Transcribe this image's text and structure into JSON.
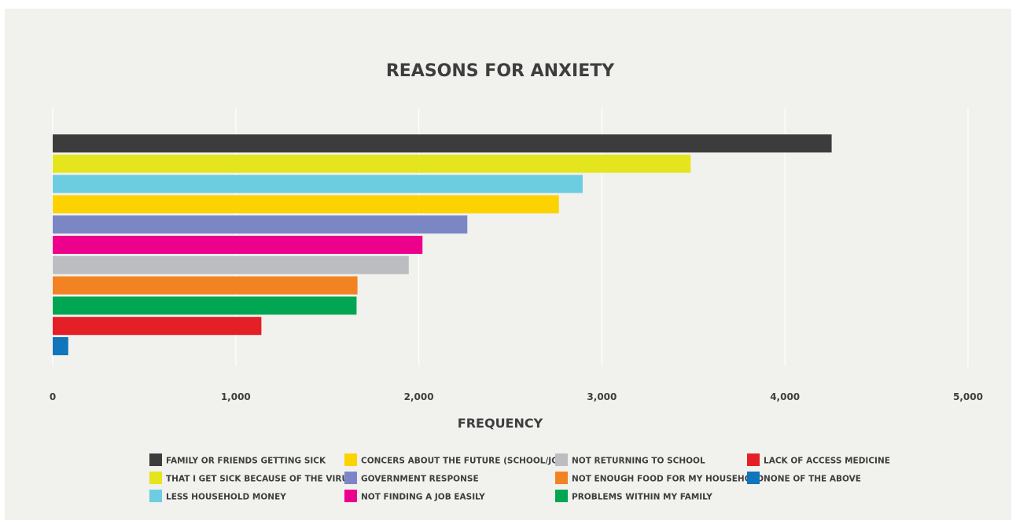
{
  "chart_data": {
    "type": "bar",
    "orientation": "horizontal",
    "title": "REASONS FOR ANXIETY",
    "xlabel": "FREQUENCY",
    "ylabel": "",
    "xlim": [
      0,
      5000
    ],
    "xticks": [
      {
        "value": 0,
        "label": "0"
      },
      {
        "value": 1000,
        "label": "1,000"
      },
      {
        "value": 2000,
        "label": "2,000"
      },
      {
        "value": 3000,
        "label": "3,000"
      },
      {
        "value": 4000,
        "label": "4,000"
      },
      {
        "value": 5000,
        "label": "5,000"
      }
    ],
    "grid": true,
    "legend_position": "bottom",
    "series": [
      {
        "name": "FAMILY OR FRIENDS GETTING SICK",
        "value": 4255,
        "color": "#3c3c3c"
      },
      {
        "name": "THAT I GET SICK BECAUSE OF THE VIRUS",
        "value": 3485,
        "color": "#e5e51e"
      },
      {
        "name": "LESS HOUSEHOLD MONEY",
        "value": 2895,
        "color": "#6dcde0"
      },
      {
        "name": "CONCERS ABOUT THE FUTURE (SCHOOL/JOB)",
        "value": 2765,
        "color": "#fcd300"
      },
      {
        "name": "GOVERNMENT RESPONSE",
        "value": 2265,
        "color": "#7b87c5"
      },
      {
        "name": "NOT FINDING A JOB EASILY",
        "value": 2020,
        "color": "#ec008c"
      },
      {
        "name": "NOT RETURNING TO SCHOOL",
        "value": 1945,
        "color": "#bcbdc0"
      },
      {
        "name": "NOT ENOUGH FOOD FOR MY HOUSEHOLD",
        "value": 1665,
        "color": "#f38322"
      },
      {
        "name": "PROBLEMS WITHIN MY FAMILY",
        "value": 1660,
        "color": "#00a651"
      },
      {
        "name": "LACK OF ACCESS MEDICINE",
        "value": 1140,
        "color": "#e41f26"
      },
      {
        "name": "NONE OF THE ABOVE",
        "value": 85,
        "color": "#0f75bc"
      }
    ],
    "legend_order": [
      "FAMILY OR FRIENDS GETTING SICK",
      "CONCERS ABOUT THE FUTURE (SCHOOL/JOB)",
      "NOT RETURNING TO SCHOOL",
      "LACK OF ACCESS MEDICINE",
      "THAT I GET SICK BECAUSE OF THE VIRUS",
      "GOVERNMENT RESPONSE",
      "NOT ENOUGH FOOD FOR MY HOUSEHOLD",
      "NONE OF THE ABOVE",
      "LESS HOUSEHOLD MONEY",
      "NOT FINDING A JOB EASILY",
      "PROBLEMS WITHIN MY FAMILY"
    ]
  }
}
